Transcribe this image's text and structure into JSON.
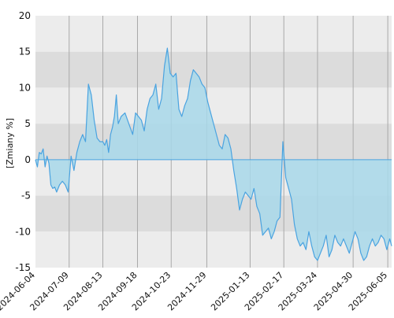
{
  "chart_data": {
    "type": "area",
    "title": "",
    "xlabel": "",
    "ylabel": "[Zmiany %]",
    "ylim": [
      -15,
      20
    ],
    "y_ticks": [
      20,
      15,
      10,
      5,
      0,
      -5,
      -10,
      -15
    ],
    "x_ticks": [
      "2024-06-04",
      "2024-07-09",
      "2024-08-13",
      "2024-09-18",
      "2024-10-23",
      "2024-11-29",
      "2025-01-13",
      "2025-02-17",
      "2025-03-24",
      "2025-04-30",
      "2025-06-05"
    ],
    "x_range": [
      "2024-06-04",
      "2025-06-09"
    ],
    "grid": true,
    "colors": {
      "line": "#4aa3e0",
      "fill": "#a8d8ea",
      "band_light": "#ececec",
      "band_dark": "#dcdcdc",
      "gridline": "#a9a9a9",
      "zero_line": "#4aa3e0"
    },
    "series": [
      {
        "x": [
          "2024-06-04",
          "2024-06-06",
          "2024-06-08",
          "2024-06-10",
          "2024-06-12",
          "2024-06-14",
          "2024-06-16",
          "2024-06-18",
          "2024-06-20",
          "2024-06-22",
          "2024-06-24",
          "2024-06-26",
          "2024-06-29",
          "2024-07-02",
          "2024-07-05",
          "2024-07-08",
          "2024-07-11",
          "2024-07-14",
          "2024-07-17",
          "2024-07-20",
          "2024-07-23",
          "2024-07-26",
          "2024-07-29",
          "2024-08-01",
          "2024-08-04",
          "2024-08-07",
          "2024-08-10",
          "2024-08-13",
          "2024-08-15",
          "2024-08-17",
          "2024-08-19",
          "2024-08-21",
          "2024-08-23",
          "2024-08-25",
          "2024-08-27",
          "2024-08-29",
          "2024-09-01",
          "2024-09-05",
          "2024-09-09",
          "2024-09-13",
          "2024-09-16",
          "2024-09-19",
          "2024-09-22",
          "2024-09-25",
          "2024-09-28",
          "2024-10-01",
          "2024-10-04",
          "2024-10-07",
          "2024-10-10",
          "2024-10-13",
          "2024-10-16",
          "2024-10-19",
          "2024-10-22",
          "2024-10-25",
          "2024-10-28",
          "2024-10-31",
          "2024-11-03",
          "2024-11-06",
          "2024-11-09",
          "2024-11-12",
          "2024-11-15",
          "2024-11-18",
          "2024-11-21",
          "2024-11-24",
          "2024-11-27",
          "2024-11-30",
          "2024-12-03",
          "2024-12-06",
          "2024-12-09",
          "2024-12-12",
          "2024-12-15",
          "2024-12-18",
          "2024-12-21",
          "2024-12-24",
          "2024-12-27",
          "2024-12-30",
          "2025-01-02",
          "2025-01-05",
          "2025-01-08",
          "2025-01-11",
          "2025-01-14",
          "2025-01-17",
          "2025-01-20",
          "2025-01-23",
          "2025-01-26",
          "2025-01-29",
          "2025-02-01",
          "2025-02-04",
          "2025-02-07",
          "2025-02-10",
          "2025-02-13",
          "2025-02-16",
          "2025-02-19",
          "2025-02-22",
          "2025-02-25",
          "2025-02-28",
          "2025-03-03",
          "2025-03-06",
          "2025-03-09",
          "2025-03-12",
          "2025-03-15",
          "2025-03-18",
          "2025-03-21",
          "2025-03-24",
          "2025-03-27",
          "2025-03-30",
          "2025-04-02",
          "2025-04-05",
          "2025-04-08",
          "2025-04-11",
          "2025-04-14",
          "2025-04-17",
          "2025-04-20",
          "2025-04-23",
          "2025-04-26",
          "2025-04-29",
          "2025-05-02",
          "2025-05-05",
          "2025-05-08",
          "2025-05-11",
          "2025-05-14",
          "2025-05-17",
          "2025-05-20",
          "2025-05-23",
          "2025-05-26",
          "2025-05-29",
          "2025-06-01",
          "2025-06-04",
          "2025-06-07",
          "2025-06-09"
        ],
        "y": [
          0.0,
          -1.0,
          1.0,
          0.8,
          1.5,
          -1.0,
          0.5,
          -0.5,
          -3.5,
          -4.0,
          -3.8,
          -4.5,
          -3.5,
          -3.0,
          -3.5,
          -4.5,
          0.5,
          -1.5,
          1.0,
          2.5,
          3.5,
          2.5,
          10.5,
          9.0,
          5.5,
          3.0,
          2.5,
          2.5,
          2.0,
          2.8,
          1.0,
          3.5,
          4.5,
          6.0,
          9.0,
          5.0,
          6.0,
          6.5,
          5.0,
          3.5,
          6.5,
          6.0,
          5.5,
          4.0,
          7.0,
          8.5,
          9.0,
          10.5,
          7.0,
          8.5,
          13.0,
          15.5,
          12.0,
          11.5,
          12.0,
          7.0,
          6.0,
          7.5,
          8.5,
          11.0,
          12.5,
          12.0,
          11.5,
          10.5,
          10.0,
          8.0,
          6.5,
          5.0,
          3.5,
          2.0,
          1.5,
          3.5,
          3.0,
          1.5,
          -1.5,
          -4.0,
          -7.0,
          -5.5,
          -4.5,
          -5.0,
          -5.5,
          -4.0,
          -6.5,
          -7.5,
          -10.5,
          -10.0,
          -9.5,
          -11.0,
          -10.0,
          -8.5,
          -8.0,
          2.5,
          -2.5,
          -4.0,
          -5.5,
          -9.0,
          -11.0,
          -12.0,
          -11.5,
          -12.5,
          -10.0,
          -12.0,
          -13.5,
          -14.0,
          -13.0,
          -12.0,
          -10.5,
          -13.5,
          -12.5,
          -10.5,
          -11.5,
          -12.0,
          -11.0,
          -12.0,
          -13.0,
          -11.5,
          -10.0,
          -11.0,
          -13.0,
          -14.0,
          -13.5,
          -12.0,
          -11.0,
          -12.0,
          -11.5,
          -10.5,
          -11.0,
          -12.5,
          -11.0,
          -12.0
        ]
      }
    ]
  }
}
